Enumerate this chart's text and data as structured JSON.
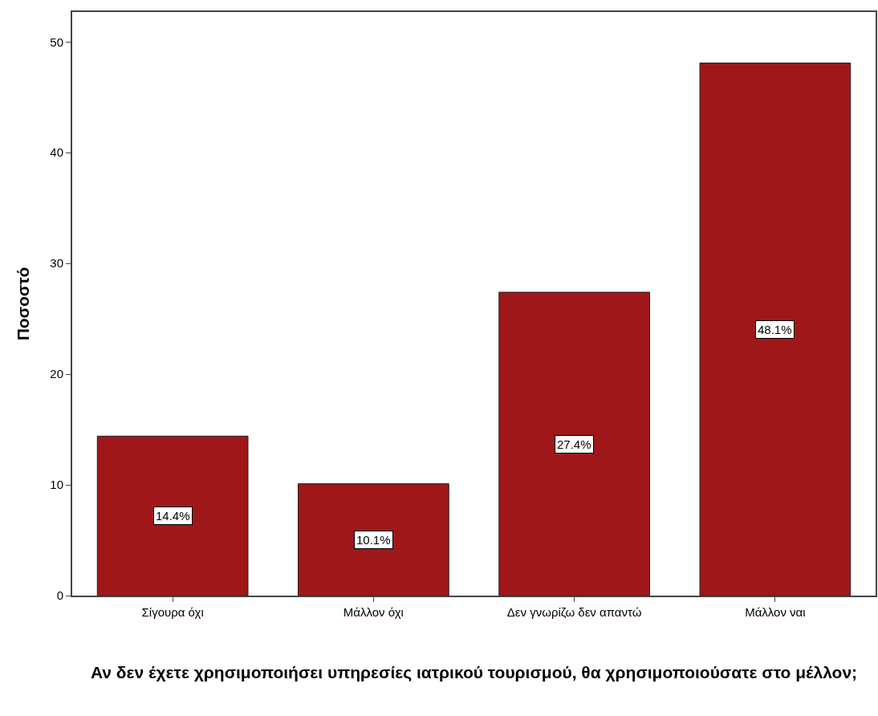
{
  "chart_data": {
    "type": "bar",
    "xlabel": "Αν δεν έχετε χρησιμοποιήσει υπηρεσίες ιατρικού τουρισμού, θα χρησιμοποιούσατε στο μέλλον;",
    "ylabel": "Ποσοστό",
    "categories": [
      "Σίγουρα όχι",
      "Μάλλον όχι",
      "Δεν γνωρίζω δεν απαντώ",
      "Μάλλον ναι"
    ],
    "values": [
      14.4,
      10.1,
      27.4,
      48.1
    ],
    "value_labels": [
      "14.4%",
      "10.1%",
      "27.4%",
      "48.1%"
    ],
    "color": "#a0171a",
    "ylim": [
      0,
      52.7
    ],
    "yticks": [
      0,
      10,
      20,
      30,
      40,
      50
    ],
    "grid": false,
    "legend": false
  }
}
